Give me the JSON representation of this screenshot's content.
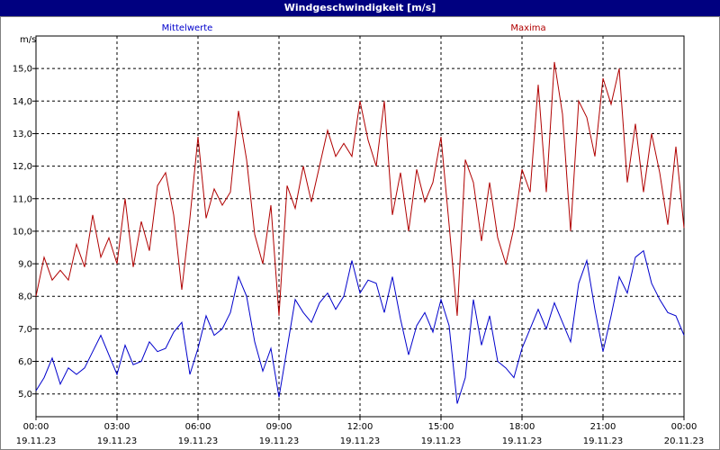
{
  "window": {
    "title": "Windgeschwindigkeit [m/s]"
  },
  "colors": {
    "mean": "#0000cc",
    "max": "#b00000",
    "titlebar": "#000080",
    "grid": "#000000"
  },
  "chart_data": {
    "type": "line",
    "title": "Windgeschwindigkeit [m/s]",
    "ylabel": "m/s",
    "ylim": [
      4.3,
      16.0
    ],
    "yticks": [
      "5,0",
      "6,0",
      "7,0",
      "8,0",
      "9,0",
      "10,0",
      "11,0",
      "12,0",
      "13,0",
      "14,0",
      "15,0"
    ],
    "xlim": [
      0,
      24
    ],
    "xticks": [
      {
        "time": "00:00",
        "date": "19.11.23"
      },
      {
        "time": "03:00",
        "date": "19.11.23"
      },
      {
        "time": "06:00",
        "date": "19.11.23"
      },
      {
        "time": "09:00",
        "date": "19.11.23"
      },
      {
        "time": "12:00",
        "date": "19.11.23"
      },
      {
        "time": "15:00",
        "date": "19.11.23"
      },
      {
        "time": "18:00",
        "date": "19.11.23"
      },
      {
        "time": "21:00",
        "date": "19.11.23"
      },
      {
        "time": "00:00",
        "date": "20.11.23"
      }
    ],
    "grid": true,
    "legend": "top",
    "series": [
      {
        "name": "Mittelwerte",
        "color": "#0000cc",
        "x": [
          0.0,
          0.3,
          0.6,
          0.9,
          1.2,
          1.5,
          1.8,
          2.1,
          2.4,
          2.7,
          3.0,
          3.3,
          3.6,
          3.9,
          4.2,
          4.5,
          4.8,
          5.1,
          5.4,
          5.7,
          6.0,
          6.3,
          6.6,
          6.9,
          7.2,
          7.5,
          7.8,
          8.1,
          8.4,
          8.7,
          9.0,
          9.3,
          9.6,
          9.9,
          10.2,
          10.5,
          10.8,
          11.1,
          11.4,
          11.7,
          12.0,
          12.3,
          12.6,
          12.9,
          13.2,
          13.5,
          13.8,
          14.1,
          14.4,
          14.7,
          15.0,
          15.3,
          15.6,
          15.9,
          16.2,
          16.5,
          16.8,
          17.1,
          17.4,
          17.7,
          18.0,
          18.3,
          18.6,
          18.9,
          19.2,
          19.5,
          19.8,
          20.1,
          20.4,
          20.7,
          21.0,
          21.3,
          21.6,
          21.9,
          22.2,
          22.5,
          22.8,
          23.1,
          23.4,
          23.7,
          24.0
        ],
        "values": [
          5.1,
          5.5,
          6.1,
          5.3,
          5.8,
          5.6,
          5.8,
          6.3,
          6.8,
          6.2,
          5.6,
          6.5,
          5.9,
          6.0,
          6.6,
          6.3,
          6.4,
          6.9,
          7.2,
          5.6,
          6.4,
          7.4,
          6.8,
          7.0,
          7.5,
          8.6,
          8.0,
          6.6,
          5.7,
          6.4,
          4.9,
          6.4,
          7.9,
          7.5,
          7.2,
          7.8,
          8.1,
          7.6,
          8.0,
          9.1,
          8.1,
          8.5,
          8.4,
          7.5,
          8.6,
          7.3,
          6.2,
          7.1,
          7.5,
          6.9,
          7.9,
          7.1,
          4.7,
          5.5,
          7.9,
          6.5,
          7.4,
          6.0,
          5.8,
          5.5,
          6.4,
          7.0,
          7.6,
          7.0,
          7.8,
          7.2,
          6.6,
          8.4,
          9.1,
          7.6,
          6.3,
          7.4,
          8.6,
          8.1,
          9.2,
          9.4,
          8.4,
          7.9,
          7.5,
          7.4,
          6.8
        ]
      },
      {
        "name": "Maxima",
        "color": "#b00000",
        "x": [
          0.0,
          0.3,
          0.6,
          0.9,
          1.2,
          1.5,
          1.8,
          2.1,
          2.4,
          2.7,
          3.0,
          3.3,
          3.6,
          3.9,
          4.2,
          4.5,
          4.8,
          5.1,
          5.4,
          5.7,
          6.0,
          6.3,
          6.6,
          6.9,
          7.2,
          7.5,
          7.8,
          8.1,
          8.4,
          8.7,
          9.0,
          9.3,
          9.6,
          9.9,
          10.2,
          10.5,
          10.8,
          11.1,
          11.4,
          11.7,
          12.0,
          12.3,
          12.6,
          12.9,
          13.2,
          13.5,
          13.8,
          14.1,
          14.4,
          14.7,
          15.0,
          15.3,
          15.6,
          15.9,
          16.2,
          16.5,
          16.8,
          17.1,
          17.4,
          17.7,
          18.0,
          18.3,
          18.6,
          18.9,
          19.2,
          19.5,
          19.8,
          20.1,
          20.4,
          20.7,
          21.0,
          21.3,
          21.6,
          21.9,
          22.2,
          22.5,
          22.8,
          23.1,
          23.4,
          23.7,
          24.0
        ],
        "values": [
          8.0,
          9.2,
          8.5,
          8.8,
          8.5,
          9.6,
          8.9,
          10.5,
          9.2,
          9.8,
          9.0,
          11.0,
          8.9,
          10.3,
          9.4,
          11.4,
          11.8,
          10.5,
          8.2,
          10.4,
          12.9,
          10.4,
          11.3,
          10.8,
          11.2,
          13.7,
          12.2,
          9.9,
          9.0,
          10.8,
          7.4,
          11.4,
          10.7,
          12.0,
          10.9,
          12.0,
          13.1,
          12.3,
          12.7,
          12.3,
          14.0,
          12.8,
          12.0,
          14.0,
          10.5,
          11.8,
          10.0,
          11.9,
          10.9,
          11.5,
          12.9,
          10.2,
          7.4,
          12.2,
          11.5,
          9.7,
          11.5,
          9.8,
          9.0,
          10.1,
          11.9,
          11.2,
          14.5,
          11.2,
          15.2,
          13.6,
          10.0,
          14.0,
          13.5,
          12.3,
          14.7,
          13.9,
          15.0,
          11.5,
          13.3,
          11.2,
          13.0,
          11.8,
          10.2,
          12.6,
          10.1
        ]
      }
    ]
  }
}
